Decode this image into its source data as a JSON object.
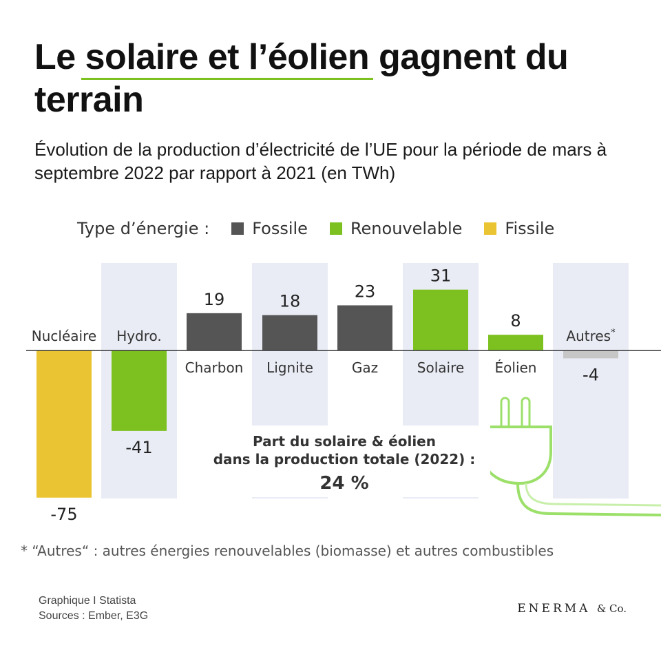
{
  "title": {
    "prefix": "Le ",
    "highlight": "solaire et l’éolien",
    "suffix": " gagnent du terrain"
  },
  "subtitle": "Évolution de la production d’électricité de l’UE pour la période de mars à septembre 2022 par rapport à 2021 (en TWh)",
  "legend": {
    "label": "Type d’énergie :",
    "items": [
      {
        "name": "Fossile",
        "color": "#555555"
      },
      {
        "name": "Renouvelable",
        "color": "#7cc11f"
      },
      {
        "name": "Fissile",
        "color": "#ebc433"
      }
    ]
  },
  "chart_data": {
    "type": "bar",
    "title": "Évolution de la production d’électricité de l’UE (mars–septembre 2022 vs 2021, TWh)",
    "categories": [
      "Nucléaire",
      "Hydro.",
      "Charbon",
      "Lignite",
      "Gaz",
      "Solaire",
      "Éolien",
      "Autres*"
    ],
    "values": [
      -75,
      -41,
      19,
      18,
      23,
      31,
      8,
      -4
    ],
    "value_labels": [
      "-75",
      "-41",
      "19",
      "18",
      "23",
      "31",
      "8",
      "-4"
    ],
    "groups": [
      "Fissile",
      "Renouvelable",
      "Fossile",
      "Fossile",
      "Fossile",
      "Renouvelable",
      "Renouvelable",
      "Autres"
    ],
    "colors": {
      "Fissile": "#ebc433",
      "Renouvelable": "#7cc11f",
      "Fossile": "#555555",
      "Autres": "#c6c6c6"
    },
    "ylabel": "TWh",
    "ylim": [
      -75,
      31
    ]
  },
  "callout": {
    "line1": "Part du solaire & éolien",
    "line2": "dans la production totale (2022) :",
    "value": "24 %"
  },
  "footnote": "* “Autres“ : autres énergies renouvelables (biomasse) et autres combustibles",
  "source": {
    "line1": "Graphique I Statista",
    "line2": "Sources : Ember, E3G"
  },
  "brand": {
    "name": "ENERMA",
    "suffix": "& Co."
  },
  "icons": [
    "plug-icon"
  ]
}
